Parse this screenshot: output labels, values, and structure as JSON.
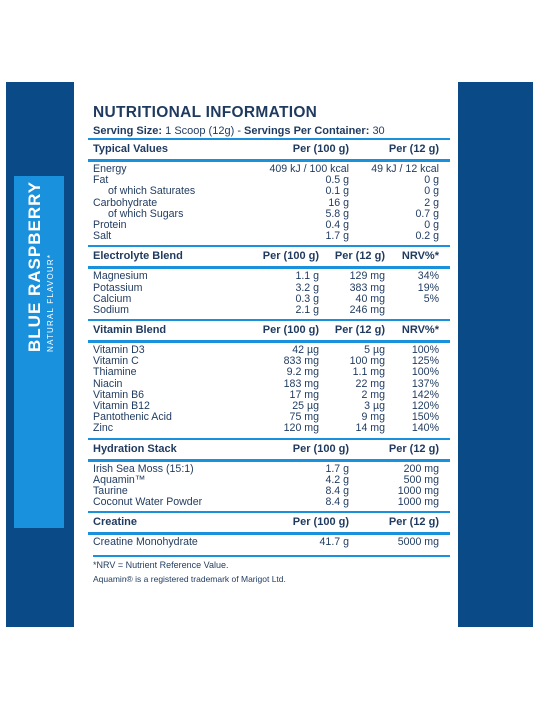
{
  "flavour": {
    "name": "BLUE RASPBERRY",
    "subtitle": "NATURAL FLAVOUR*"
  },
  "title": "NUTRITIONAL INFORMATION",
  "serving": {
    "size_label": "Serving Size:",
    "size_value": "1 Scoop (12g)",
    "separator": "-",
    "per_container_label": "Servings Per Container:",
    "per_container_value": "30"
  },
  "typical": {
    "header": [
      "Typical Values",
      "Per (100 g)",
      "Per (12 g)"
    ],
    "rows": [
      [
        "Energy",
        "409 kJ / 100 kcal",
        "49 kJ / 12 kcal"
      ],
      [
        "Fat",
        "0.5 g",
        "0 g"
      ],
      [
        "of which Saturates",
        "0.1 g",
        "0 g"
      ],
      [
        "Carbohydrate",
        "16 g",
        "2 g"
      ],
      [
        "of which Sugars",
        "5.8 g",
        "0.7 g"
      ],
      [
        "Protein",
        "0.4 g",
        "0 g"
      ],
      [
        "Salt",
        "1.7 g",
        "0.2 g"
      ]
    ]
  },
  "electrolyte": {
    "header": [
      "Electrolyte Blend",
      "Per (100 g)",
      "Per (12 g)",
      "NRV%*"
    ],
    "rows": [
      [
        "Magnesium",
        "1.1 g",
        "129 mg",
        "34%"
      ],
      [
        "Potassium",
        "3.2 g",
        "383 mg",
        "19%"
      ],
      [
        "Calcium",
        "0.3 g",
        "40 mg",
        "5%"
      ],
      [
        "Sodium",
        "2.1 g",
        "246 mg",
        ""
      ]
    ]
  },
  "vitamin": {
    "header": [
      "Vitamin Blend",
      "Per (100 g)",
      "Per (12 g)",
      "NRV%*"
    ],
    "rows": [
      [
        "Vitamin D3",
        "42 µg",
        "5 µg",
        "100%"
      ],
      [
        "Vitamin C",
        "833 mg",
        "100 mg",
        "125%"
      ],
      [
        "Thiamine",
        "9.2 mg",
        "1.1 mg",
        "100%"
      ],
      [
        "Niacin",
        "183 mg",
        "22 mg",
        "137%"
      ],
      [
        "Vitamin B6",
        "17 mg",
        "2 mg",
        "142%"
      ],
      [
        "Vitamin B12",
        "25 µg",
        "3 µg",
        "120%"
      ],
      [
        "Pantothenic Acid",
        "75 mg",
        "9 mg",
        "150%"
      ],
      [
        "Zinc",
        "120 mg",
        "14 mg",
        "140%"
      ]
    ]
  },
  "hydration": {
    "header": [
      "Hydration Stack",
      "Per (100 g)",
      "Per (12 g)"
    ],
    "rows": [
      [
        "Irish Sea Moss (15:1)",
        "1.7 g",
        "200 mg"
      ],
      [
        "Aquamin™",
        "4.2 g",
        "500 mg"
      ],
      [
        "Taurine",
        "8.4 g",
        "1000 mg"
      ],
      [
        "Coconut Water Powder",
        "8.4 g",
        "1000 mg"
      ]
    ]
  },
  "creatine": {
    "header": [
      "Creatine",
      "Per (100 g)",
      "Per (12 g)"
    ],
    "rows": [
      [
        "Creatine Monohydrate",
        "41.7 g",
        "5000 mg"
      ]
    ]
  },
  "footnote": "*NRV = Nutrient Reference Value.",
  "trademark": "Aquamin® is a registered trademark of Marigot Ltd.",
  "colors": {
    "navy": "#0a4a86",
    "accent": "#1a91dc",
    "text": "#1f3a5f"
  }
}
